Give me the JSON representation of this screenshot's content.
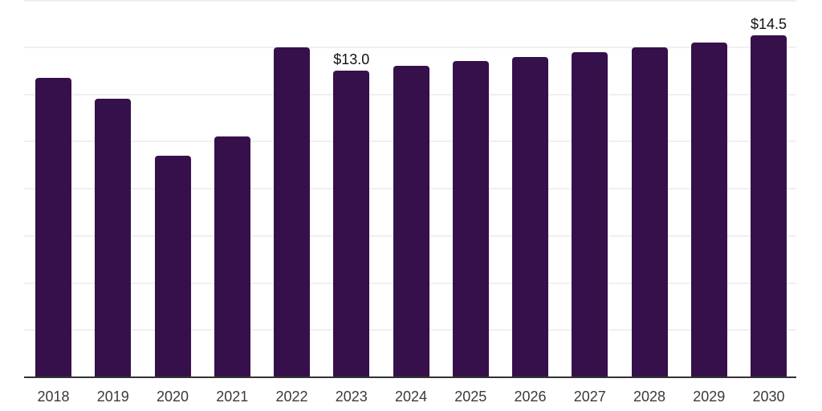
{
  "chart_data": {
    "type": "bar",
    "title": "",
    "xlabel": "",
    "ylabel": "",
    "categories": [
      "2018",
      "2019",
      "2020",
      "2021",
      "2022",
      "2023",
      "2024",
      "2025",
      "2026",
      "2027",
      "2028",
      "2029",
      "2030"
    ],
    "values": [
      12.7,
      11.8,
      9.4,
      10.2,
      14.0,
      13.0,
      13.2,
      13.4,
      13.6,
      13.8,
      14.0,
      14.2,
      14.5
    ],
    "value_unit_prefix": "$",
    "data_labels": [
      {
        "category": "2023",
        "text": "$13.0"
      },
      {
        "category": "2030",
        "text": "$14.5"
      }
    ],
    "ylim": [
      0,
      16
    ],
    "gridline_step": 2,
    "grid": "horizontal",
    "legend_position": "none",
    "y_axis_tick_labels_visible": false,
    "colors": {
      "bar": "#36104A",
      "gridline": "#f0f0f0",
      "axis_line": "#333333",
      "tick_label": "#3a3a3a",
      "data_label": "#111111",
      "background": "#ffffff"
    }
  }
}
